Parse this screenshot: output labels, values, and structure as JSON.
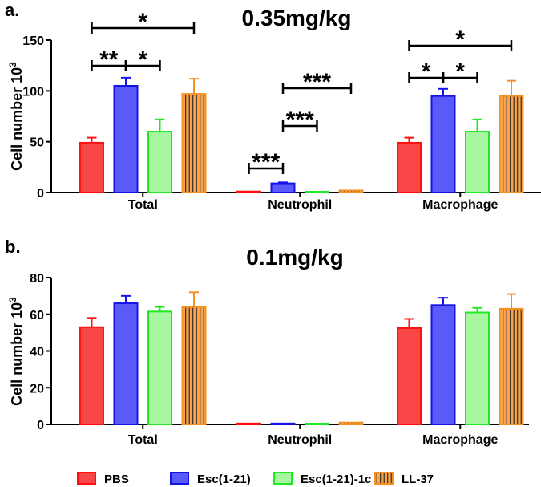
{
  "chart_data": [
    {
      "type": "bar",
      "panel_label": "a.",
      "title": "0.35mg/kg",
      "ylabel": "Cell number 10",
      "ylabel_sup": "3",
      "ylim": [
        0,
        150
      ],
      "yticks": [
        "0",
        "50",
        "100",
        "150"
      ],
      "ytick_values": [
        0,
        50,
        100,
        150
      ],
      "categories": [
        "Total",
        "Neutrophil",
        "Macrophage"
      ],
      "series": [
        {
          "name": "PBS",
          "values": [
            49,
            1,
            49
          ],
          "errors": [
            5,
            0.5,
            5
          ]
        },
        {
          "name": "Esc(1-21)",
          "values": [
            105,
            9,
            95
          ],
          "errors": [
            8,
            1,
            7
          ]
        },
        {
          "name": "Esc(1-21)-1c",
          "values": [
            60,
            0.5,
            60
          ],
          "errors": [
            12,
            0.3,
            12
          ]
        },
        {
          "name": "LL-37",
          "values": [
            97,
            2,
            95
          ],
          "errors": [
            15,
            0.5,
            15
          ]
        }
      ],
      "significance": [
        {
          "group": 0,
          "from": 0,
          "to": 3,
          "label": "*"
        },
        {
          "group": 0,
          "from": 0,
          "to": 1,
          "label": "**"
        },
        {
          "group": 0,
          "from": 1,
          "to": 2,
          "label": "*"
        },
        {
          "group": 1,
          "from": 0,
          "to": 1,
          "label": "***"
        },
        {
          "group": 1,
          "from": 1,
          "to": 2,
          "label": "***"
        },
        {
          "group": 1,
          "from": 1,
          "to": 3,
          "label": "***"
        },
        {
          "group": 2,
          "from": 0,
          "to": 3,
          "label": "*"
        },
        {
          "group": 2,
          "from": 0,
          "to": 1,
          "label": "*"
        },
        {
          "group": 2,
          "from": 1,
          "to": 2,
          "label": "*"
        }
      ]
    },
    {
      "type": "bar",
      "panel_label": "b.",
      "title": "0.1mg/kg",
      "ylabel": "Cell number 10",
      "ylabel_sup": "3",
      "ylim": [
        0,
        80
      ],
      "yticks": [
        "0",
        "20",
        "40",
        "60",
        "80"
      ],
      "ytick_values": [
        0,
        20,
        40,
        60,
        80
      ],
      "categories": [
        "Total",
        "Neutrophil",
        "Macrophage"
      ],
      "series": [
        {
          "name": "PBS",
          "values": [
            53,
            0.5,
            52.5
          ],
          "errors": [
            5,
            0.3,
            5
          ]
        },
        {
          "name": "Esc(1-21)",
          "values": [
            66,
            0.5,
            65
          ],
          "errors": [
            4,
            0.5,
            4
          ]
        },
        {
          "name": "Esc(1-21)-1c",
          "values": [
            61.5,
            0.2,
            61
          ],
          "errors": [
            2.5,
            0.2,
            2.5
          ]
        },
        {
          "name": "LL-37",
          "values": [
            64,
            1,
            63
          ],
          "errors": [
            8,
            0.3,
            8
          ]
        }
      ],
      "significance": []
    }
  ],
  "legend": {
    "placement": "bottom",
    "items": [
      {
        "label": "PBS",
        "fill": "#f84545",
        "stroke": "#ff1010",
        "hatch": false
      },
      {
        "label": "Esc(1-21)",
        "fill": "#5a5af8",
        "stroke": "#1414e8",
        "hatch": false
      },
      {
        "label": "Esc(1-21)-1c",
        "fill": "#a6f7a0",
        "stroke": "#22e822",
        "hatch": false
      },
      {
        "label": "LL-37",
        "fill": "#f9a44a",
        "stroke": "#f79020",
        "hatch": true
      }
    ]
  }
}
